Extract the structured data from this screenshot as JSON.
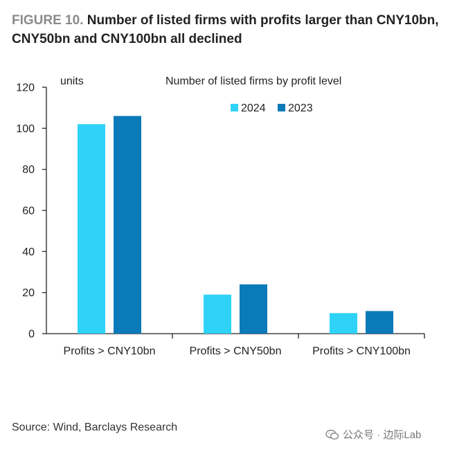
{
  "figure": {
    "label": "FIGURE 10.",
    "title": "Number of listed firms with profits larger than CNY10bn, CNY50bn and CNY100bn all declined"
  },
  "source": "Source: Wind, Barclays Research",
  "watermark": {
    "text": "公众号 · 边际Lab",
    "icon": "wechat-icon"
  },
  "colors": {
    "series_2024": "#2ed3f7",
    "series_2023": "#0a7ab8",
    "axis": "#222222"
  },
  "chart_data": {
    "type": "bar",
    "title": "Number of listed firms by profit level",
    "ylabel": "units",
    "xlabel": "",
    "categories": [
      "Profits > CNY10bn",
      "Profits > CNY50bn",
      "Profits > CNY100bn"
    ],
    "series": [
      {
        "name": "2024",
        "values": [
          102,
          19,
          10
        ]
      },
      {
        "name": "2023",
        "values": [
          106,
          24,
          11
        ]
      }
    ],
    "ylim": [
      0,
      120
    ],
    "yticks": [
      0,
      20,
      40,
      60,
      80,
      100,
      120
    ],
    "grid": false,
    "legend": "top-right"
  }
}
